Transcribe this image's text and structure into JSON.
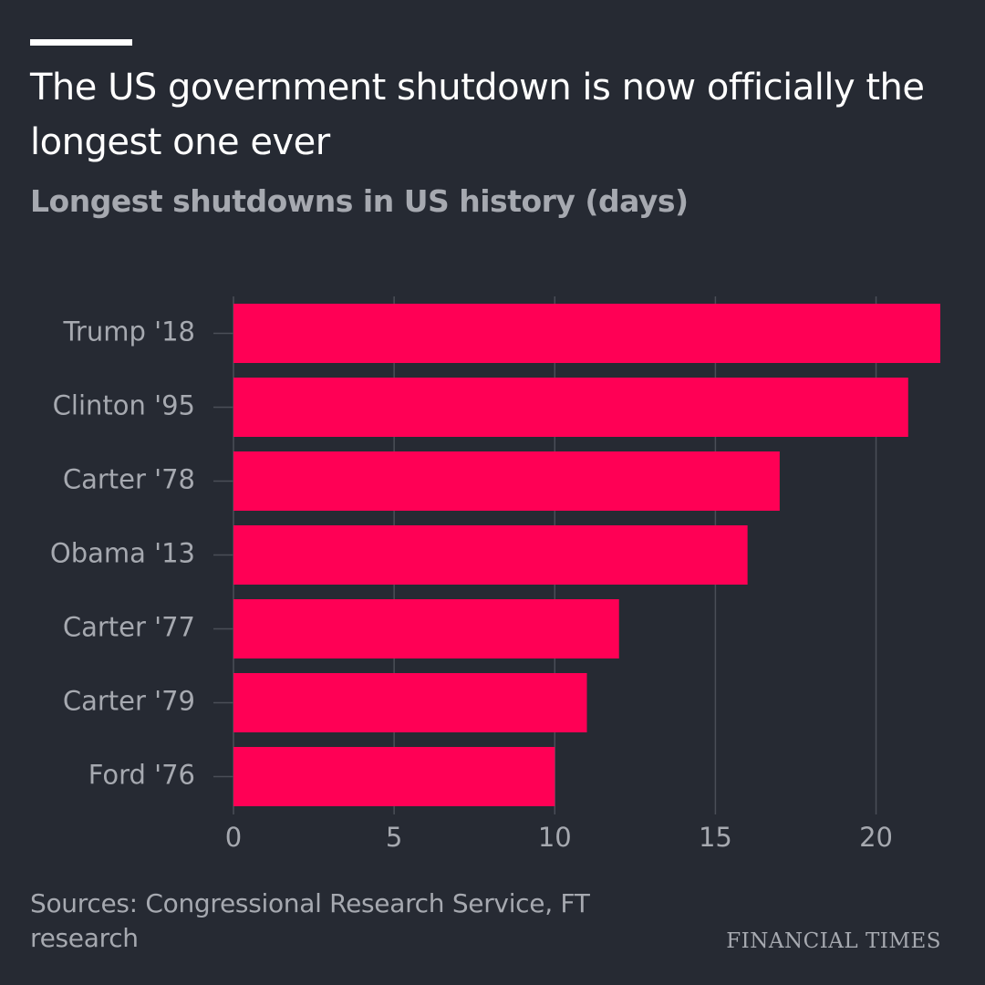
{
  "header": {
    "title": "The US government shutdown is now officially the longest one ever",
    "subtitle": "Longest shutdowns in US history (days)"
  },
  "footer": {
    "source": "Sources: Congressional Research Service, FT research",
    "brand": "FINANCIAL TIMES"
  },
  "colors": {
    "background": "#262a33",
    "bar": "#ff0055",
    "grid": "#4a4e57",
    "tick_text": "#a6a9b0",
    "title_text": "#ffffff"
  },
  "chart_data": {
    "type": "bar",
    "orientation": "horizontal",
    "title": "The US government shutdown is now officially the longest one ever",
    "subtitle": "Longest shutdowns in US history (days)",
    "categories": [
      "Trump '18",
      "Clinton '95",
      "Carter '78",
      "Obama '13",
      "Carter '77",
      "Carter '79",
      "Ford '76"
    ],
    "values": [
      22,
      21,
      17,
      16,
      12,
      11,
      10
    ],
    "xlabel": "",
    "ylabel": "",
    "xlim": [
      0,
      22
    ],
    "xticks": [
      0,
      5,
      10,
      15,
      20
    ],
    "grid": "vertical",
    "legend": "none"
  }
}
